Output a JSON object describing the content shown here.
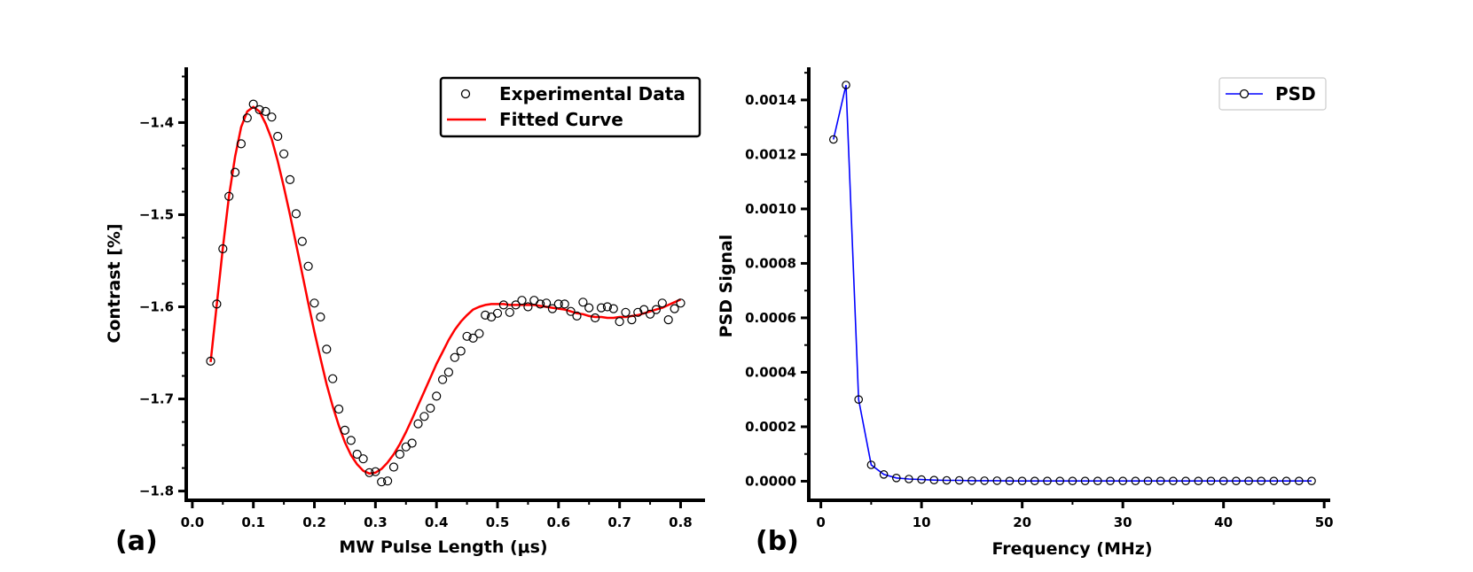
{
  "chart_data": [
    {
      "type": "scatter",
      "panel_label": "(a)",
      "title": "",
      "xlabel": "MW Pulse Length (μs)",
      "ylabel": "Contrast [%]",
      "xlim": [
        -0.01,
        0.84
      ],
      "ylim": [
        -1.81,
        -1.34
      ],
      "xticks": [
        0.0,
        0.1,
        0.2,
        0.3,
        0.4,
        0.5,
        0.6,
        0.7,
        0.8
      ],
      "xtick_labels": [
        "0.0",
        "0.1",
        "0.2",
        "0.3",
        "0.4",
        "0.5",
        "0.6",
        "0.7",
        "0.8"
      ],
      "yticks": [
        -1.4,
        -1.5,
        -1.6,
        -1.7,
        -1.8
      ],
      "ytick_labels": [
        "−1.4",
        "−1.5",
        "−1.6",
        "−1.7",
        "−1.8"
      ],
      "legend": {
        "location": "top-right",
        "entries": [
          "Experimental Data",
          "Fitted Curve"
        ]
      },
      "series": [
        {
          "name": "Experimental Data",
          "style": "open-circles",
          "color": "#000000",
          "x": [
            0.03,
            0.04,
            0.05,
            0.06,
            0.07,
            0.08,
            0.09,
            0.1,
            0.11,
            0.12,
            0.13,
            0.14,
            0.15,
            0.16,
            0.17,
            0.18,
            0.19,
            0.2,
            0.21,
            0.22,
            0.23,
            0.24,
            0.25,
            0.26,
            0.27,
            0.28,
            0.29,
            0.3,
            0.31,
            0.32,
            0.33,
            0.34,
            0.35,
            0.36,
            0.37,
            0.38,
            0.39,
            0.4,
            0.41,
            0.42,
            0.43,
            0.44,
            0.45,
            0.46,
            0.47,
            0.48,
            0.49,
            0.5,
            0.51,
            0.52,
            0.53,
            0.54,
            0.55,
            0.56,
            0.57,
            0.58,
            0.59,
            0.6,
            0.61,
            0.62,
            0.63,
            0.64,
            0.65,
            0.66,
            0.67,
            0.68,
            0.69,
            0.7,
            0.71,
            0.72,
            0.73,
            0.74,
            0.75,
            0.76,
            0.77,
            0.78,
            0.79,
            0.8
          ],
          "y": [
            -1.659,
            -1.597,
            -1.537,
            -1.48,
            -1.454,
            -1.423,
            -1.395,
            -1.38,
            -1.386,
            -1.388,
            -1.394,
            -1.415,
            -1.434,
            -1.462,
            -1.499,
            -1.529,
            -1.556,
            -1.596,
            -1.611,
            -1.646,
            -1.678,
            -1.711,
            -1.734,
            -1.745,
            -1.76,
            -1.765,
            -1.78,
            -1.779,
            -1.79,
            -1.789,
            -1.774,
            -1.76,
            -1.752,
            -1.748,
            -1.727,
            -1.719,
            -1.71,
            -1.697,
            -1.679,
            -1.671,
            -1.655,
            -1.648,
            -1.632,
            -1.634,
            -1.629,
            -1.609,
            -1.611,
            -1.607,
            -1.598,
            -1.606,
            -1.598,
            -1.593,
            -1.6,
            -1.593,
            -1.597,
            -1.596,
            -1.602,
            -1.597,
            -1.597,
            -1.605,
            -1.61,
            -1.595,
            -1.601,
            -1.612,
            -1.601,
            -1.6,
            -1.602,
            -1.616,
            -1.606,
            -1.614,
            -1.606,
            -1.603,
            -1.608,
            -1.603,
            -1.596,
            -1.614,
            -1.602,
            -1.596
          ]
        },
        {
          "name": "Fitted Curve",
          "style": "line",
          "color": "#ff0000",
          "x": [
            0.03,
            0.04,
            0.05,
            0.06,
            0.07,
            0.08,
            0.09,
            0.1,
            0.11,
            0.12,
            0.13,
            0.14,
            0.15,
            0.16,
            0.17,
            0.18,
            0.19,
            0.2,
            0.21,
            0.22,
            0.23,
            0.24,
            0.25,
            0.26,
            0.27,
            0.28,
            0.29,
            0.3,
            0.31,
            0.32,
            0.33,
            0.34,
            0.35,
            0.36,
            0.37,
            0.38,
            0.39,
            0.4,
            0.41,
            0.42,
            0.43,
            0.44,
            0.45,
            0.46,
            0.47,
            0.48,
            0.49,
            0.5,
            0.51,
            0.52,
            0.53,
            0.54,
            0.55,
            0.56,
            0.57,
            0.58,
            0.59,
            0.6,
            0.61,
            0.62,
            0.63,
            0.64,
            0.65,
            0.66,
            0.67,
            0.68,
            0.69,
            0.7,
            0.71,
            0.72,
            0.73,
            0.74,
            0.75,
            0.76,
            0.77,
            0.78,
            0.79,
            0.8
          ],
          "y": [
            -1.66,
            -1.598,
            -1.536,
            -1.48,
            -1.437,
            -1.405,
            -1.388,
            -1.383,
            -1.388,
            -1.401,
            -1.418,
            -1.442,
            -1.47,
            -1.5,
            -1.532,
            -1.564,
            -1.596,
            -1.627,
            -1.656,
            -1.684,
            -1.708,
            -1.729,
            -1.747,
            -1.761,
            -1.771,
            -1.778,
            -1.781,
            -1.78,
            -1.776,
            -1.769,
            -1.76,
            -1.749,
            -1.736,
            -1.722,
            -1.707,
            -1.692,
            -1.677,
            -1.662,
            -1.649,
            -1.636,
            -1.625,
            -1.616,
            -1.609,
            -1.603,
            -1.6,
            -1.598,
            -1.597,
            -1.597,
            -1.597,
            -1.598,
            -1.598,
            -1.598,
            -1.598,
            -1.598,
            -1.599,
            -1.6,
            -1.601,
            -1.602,
            -1.603,
            -1.605,
            -1.607,
            -1.608,
            -1.61,
            -1.611,
            -1.611,
            -1.612,
            -1.612,
            -1.611,
            -1.611,
            -1.61,
            -1.609,
            -1.607,
            -1.605,
            -1.603,
            -1.601,
            -1.598,
            -1.595,
            -1.592
          ]
        }
      ]
    },
    {
      "type": "line",
      "panel_label": "(b)",
      "title": "",
      "xlabel": "Frequency (MHz)",
      "ylabel": "PSD Signal",
      "xlim": [
        -1.2,
        50.6
      ],
      "ylim": [
        -7e-05,
        0.00152
      ],
      "xticks": [
        0,
        10,
        20,
        30,
        40,
        50
      ],
      "xtick_labels": [
        "0",
        "10",
        "20",
        "30",
        "40",
        "50"
      ],
      "yticks": [
        0.0,
        0.0002,
        0.0004,
        0.0006,
        0.0008,
        0.001,
        0.0012,
        0.0014
      ],
      "ytick_labels": [
        "0.0000",
        "0.0002",
        "0.0004",
        "0.0006",
        "0.0008",
        "0.0010",
        "0.0012",
        "0.0014"
      ],
      "legend": {
        "location": "top-right",
        "entries": [
          "PSD"
        ]
      },
      "series": [
        {
          "name": "PSD",
          "style": "line-with-open-circles",
          "color": "#0000ff",
          "x": [
            1.25,
            2.5,
            3.75,
            5.0,
            6.25,
            7.5,
            8.75,
            10.0,
            11.25,
            12.5,
            13.75,
            15.0,
            16.25,
            17.5,
            18.75,
            20.0,
            21.25,
            22.5,
            23.75,
            25.0,
            26.25,
            27.5,
            28.75,
            30.0,
            31.25,
            32.5,
            33.75,
            35.0,
            36.25,
            37.5,
            38.75,
            40.0,
            41.25,
            42.5,
            43.75,
            45.0,
            46.25,
            47.5,
            48.75
          ],
          "y": [
            0.001255,
            0.001455,
            0.0003,
            6e-05,
            2.5e-05,
            1.2e-05,
            8e-06,
            6e-06,
            4e-06,
            3e-06,
            3e-06,
            2e-06,
            2e-06,
            2e-06,
            1e-06,
            1e-06,
            1e-06,
            1e-06,
            1e-06,
            1e-06,
            1e-06,
            1e-06,
            1e-06,
            1e-06,
            1e-06,
            1e-06,
            1e-06,
            1e-06,
            1e-06,
            1e-06,
            1e-06,
            1e-06,
            1e-06,
            1e-06,
            1e-06,
            1e-06,
            1e-06,
            1e-06,
            1e-06
          ]
        }
      ]
    }
  ]
}
